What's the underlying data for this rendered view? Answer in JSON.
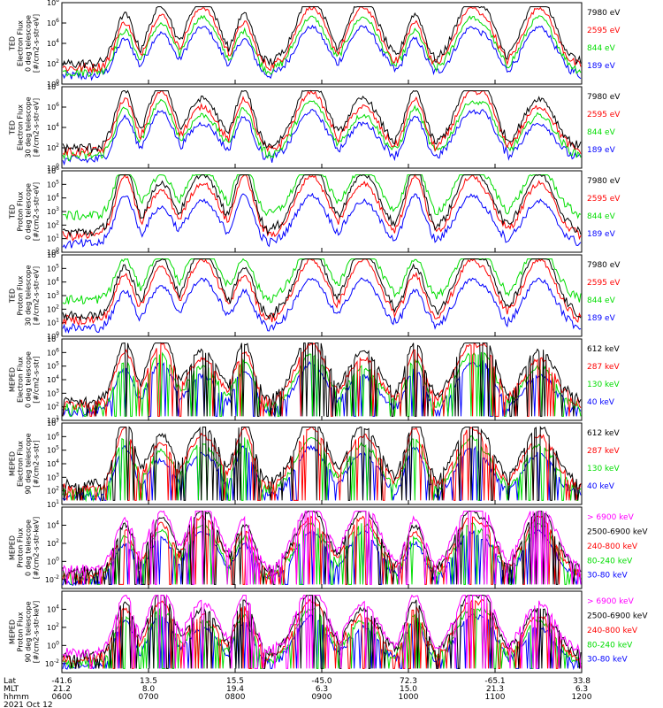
{
  "chart_data": [
    {
      "type": "line",
      "ylabel": [
        "TED",
        "Electron Flux",
        "0 deg telescope",
        "[#/cm2-s-str-eV]"
      ],
      "yticks": [
        "10^8",
        "10^6",
        "10^4",
        "10^2",
        "10^0"
      ],
      "ymin_exp": 0,
      "ymax_exp": 8,
      "ylog": true,
      "legend": [
        {
          "label": "7980 eV",
          "color": "#000000"
        },
        {
          "label": "2595 eV",
          "color": "#ff0000"
        },
        {
          "label": "844 eV",
          "color": "#00dd00"
        },
        {
          "label": "189 eV",
          "color": "#0000ff"
        }
      ]
    },
    {
      "type": "line",
      "ylabel": [
        "TED",
        "Electron Flux",
        "30 deg telescope",
        "[#/cm2-s-str-eV]"
      ],
      "yticks": [
        "10^8",
        "10^6",
        "10^4",
        "10^2",
        "10^0"
      ],
      "ymin_exp": 0,
      "ymax_exp": 8,
      "ylog": true,
      "legend": [
        {
          "label": "7980 eV",
          "color": "#000000"
        },
        {
          "label": "2595 eV",
          "color": "#ff0000"
        },
        {
          "label": "844 eV",
          "color": "#00dd00"
        },
        {
          "label": "189 eV",
          "color": "#0000ff"
        }
      ]
    },
    {
      "type": "line",
      "ylabel": [
        "TED",
        "Proton Flux",
        "0 deg telescope",
        "[#/cm2-s-str-eV]"
      ],
      "yticks": [
        "10^6",
        "10^5",
        "10^4",
        "10^3",
        "10^2",
        "10^1",
        "10^0"
      ],
      "ymin_exp": 0,
      "ymax_exp": 6,
      "ylog": true,
      "legend": [
        {
          "label": "7980 eV",
          "color": "#000000"
        },
        {
          "label": "2595 eV",
          "color": "#ff0000"
        },
        {
          "label": "844 eV",
          "color": "#00dd00"
        },
        {
          "label": "189 eV",
          "color": "#0000ff"
        }
      ]
    },
    {
      "type": "line",
      "ylabel": [
        "TED",
        "Proton Flux",
        "30 deg telescope",
        "[#/cm2-s-str-eV]"
      ],
      "yticks": [
        "10^6",
        "10^5",
        "10^4",
        "10^3",
        "10^2",
        "10^1",
        "10^0"
      ],
      "ymin_exp": 0,
      "ymax_exp": 6,
      "ylog": true,
      "legend": [
        {
          "label": "7980 eV",
          "color": "#000000"
        },
        {
          "label": "2595 eV",
          "color": "#ff0000"
        },
        {
          "label": "844 eV",
          "color": "#00dd00"
        },
        {
          "label": "189 eV",
          "color": "#0000ff"
        }
      ]
    },
    {
      "type": "line",
      "ylabel": [
        "MEPED",
        "Electron Flux",
        "0 deg telescope",
        "[#/cm2-s-str]"
      ],
      "yticks": [
        "10^7",
        "10^6",
        "10^5",
        "10^4",
        "10^3",
        "10^2",
        "10^1"
      ],
      "ymin_exp": 1,
      "ymax_exp": 7,
      "ylog": true,
      "legend": [
        {
          "label": "612 keV",
          "color": "#000000"
        },
        {
          "label": "287 keV",
          "color": "#ff0000"
        },
        {
          "label": "130 keV",
          "color": "#00dd00"
        },
        {
          "label": "40 keV",
          "color": "#0000ff"
        }
      ]
    },
    {
      "type": "line",
      "ylabel": [
        "MEPED",
        "Electron Flux",
        "90 deg telescope",
        "[#/cm2-s-str]"
      ],
      "yticks": [
        "10^7",
        "10^6",
        "10^5",
        "10^4",
        "10^3",
        "10^2",
        "10^1"
      ],
      "ymin_exp": 1,
      "ymax_exp": 7,
      "ylog": true,
      "legend": [
        {
          "label": "612 keV",
          "color": "#000000"
        },
        {
          "label": "287 keV",
          "color": "#ff0000"
        },
        {
          "label": "130 keV",
          "color": "#00dd00"
        },
        {
          "label": "40 keV",
          "color": "#0000ff"
        }
      ]
    },
    {
      "type": "line",
      "ylabel": [
        "MEPED",
        "Proton Flux",
        "0 deg telescope",
        "[#/cm2-s-str-keV]"
      ],
      "yticks": [
        "10^4",
        "10^2",
        "10^0",
        "10^-2"
      ],
      "ymin_exp": -3,
      "ymax_exp": 6,
      "ylog": true,
      "legend": [
        {
          "label": "> 6900 keV",
          "color": "#ff00ff"
        },
        {
          "label": "2500-6900 keV",
          "color": "#000000"
        },
        {
          "label": "240-800 keV",
          "color": "#ff0000"
        },
        {
          "label": "80-240 keV",
          "color": "#00dd00"
        },
        {
          "label": "30-80 keV",
          "color": "#0000ff"
        }
      ]
    },
    {
      "type": "line",
      "ylabel": [
        "MEPED",
        "Proton Flux",
        "90 deg telescope",
        "[#/cm2-s-str-keV]"
      ],
      "yticks": [
        "10^4",
        "10^2",
        "10^0",
        "10^-2"
      ],
      "ymin_exp": -3,
      "ymax_exp": 6,
      "ylog": true,
      "legend": [
        {
          "label": "> 6900 keV",
          "color": "#ff00ff"
        },
        {
          "label": "2500-6900 keV",
          "color": "#000000"
        },
        {
          "label": "240-800 keV",
          "color": "#ff0000"
        },
        {
          "label": "80-240 keV",
          "color": "#00dd00"
        },
        {
          "label": "30-80 keV",
          "color": "#0000ff"
        }
      ]
    }
  ],
  "x_axis": {
    "row_labels": [
      "Lat",
      "MLT",
      "hhmm",
      "2021 Oct 12"
    ],
    "ticks": [
      {
        "lat": "-41.6",
        "mlt": "21.2",
        "hhmm": "0600"
      },
      {
        "lat": "13.5",
        "mlt": "8.0",
        "hhmm": "0700"
      },
      {
        "lat": "15.5",
        "mlt": "19.4",
        "hhmm": "0800"
      },
      {
        "lat": "-45.0",
        "mlt": "6.3",
        "hhmm": "0900"
      },
      {
        "lat": "72.3",
        "mlt": "15.0",
        "hhmm": "1000"
      },
      {
        "lat": "-65.1",
        "mlt": "21.3",
        "hhmm": "1100"
      },
      {
        "lat": "33.8",
        "mlt": "6.3",
        "hhmm": "1200"
      }
    ]
  }
}
